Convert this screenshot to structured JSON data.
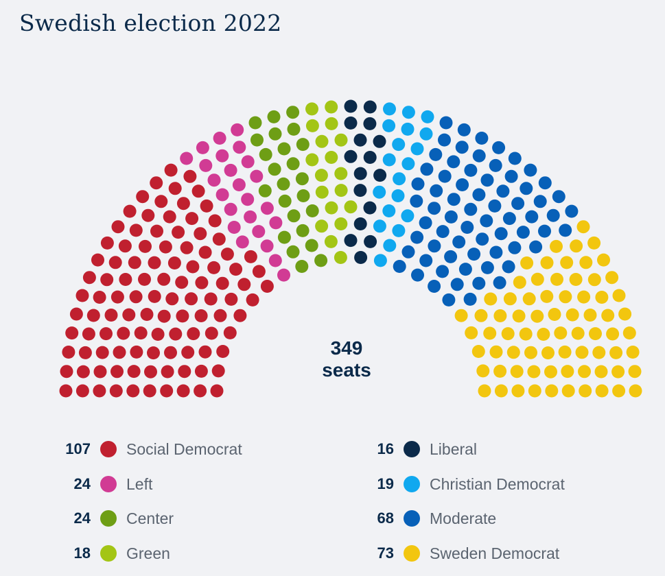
{
  "title": "Swedish election 2022",
  "chart_data": {
    "type": "parliament",
    "title": "Swedish election 2022",
    "total_seats": 349,
    "total_number": "349",
    "total_label": "seats",
    "parties": [
      {
        "name": "Social Democrat",
        "seats": 107,
        "seats_label": "107",
        "color": "#c0202f"
      },
      {
        "name": "Left",
        "seats": 24,
        "seats_label": "24",
        "color": "#d13b94"
      },
      {
        "name": "Center",
        "seats": 24,
        "seats_label": "24",
        "color": "#6e9e15"
      },
      {
        "name": "Green",
        "seats": 18,
        "seats_label": "18",
        "color": "#a3c515"
      },
      {
        "name": "Liberal",
        "seats": 16,
        "seats_label": "16",
        "color": "#0b2a4a"
      },
      {
        "name": "Christian Democrat",
        "seats": 19,
        "seats_label": "19",
        "color": "#10a8ef"
      },
      {
        "name": "Moderate",
        "seats": 68,
        "seats_label": "68",
        "color": "#0760b8"
      },
      {
        "name": "Sweden Democrat",
        "seats": 73,
        "seats_label": "73",
        "color": "#f2c60f"
      }
    ]
  }
}
